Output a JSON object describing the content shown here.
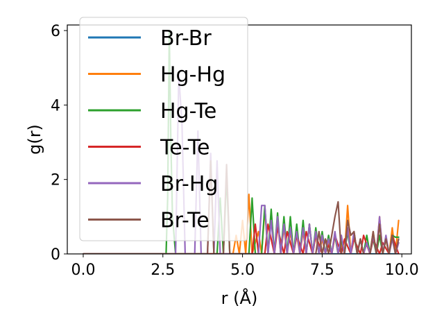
{
  "chart_data": {
    "type": "line",
    "title": "",
    "xlabel": "r (Å)",
    "ylabel": "g(r)",
    "xlim": [
      -0.5,
      10.3
    ],
    "ylim": [
      0,
      6.15
    ],
    "xticks": [
      0.0,
      2.5,
      5.0,
      7.5,
      10.0
    ],
    "xtick_labels": [
      "0.0",
      "2.5",
      "5.0",
      "7.5",
      "10.0"
    ],
    "yticks": [
      0,
      2,
      4,
      6
    ],
    "ytick_labels": [
      "0",
      "2",
      "4",
      "6"
    ],
    "grid": false,
    "legend_position": "upper-left",
    "series": [
      {
        "name": "Br-Br",
        "color": "#1f77b4",
        "x": [
          0.0,
          9.9
        ],
        "y": [
          0.0,
          0.0
        ]
      },
      {
        "name": "Hg-Hg",
        "color": "#ff7f0e",
        "x": [
          0.0,
          4.7,
          4.8,
          4.9,
          5.0,
          5.1,
          5.2,
          5.3,
          5.5,
          5.6,
          5.7,
          5.8,
          5.9,
          6.0,
          6.1,
          6.2,
          6.3,
          6.4,
          6.5,
          6.6,
          6.7,
          6.8,
          6.9,
          7.0,
          7.1,
          7.2,
          7.3,
          7.4,
          7.5,
          7.6,
          7.7,
          7.8,
          7.9,
          8.0,
          8.1,
          8.2,
          8.3,
          8.4,
          8.5,
          8.6,
          8.7,
          8.8,
          8.9,
          9.0,
          9.1,
          9.2,
          9.3,
          9.4,
          9.5,
          9.6,
          9.7,
          9.8,
          9.9
        ],
        "y": [
          0.0,
          0.0,
          0.5,
          0.0,
          0.9,
          0.0,
          1.6,
          0.0,
          0.6,
          0.0,
          1.2,
          0.0,
          1.1,
          0.0,
          0.9,
          0.0,
          0.7,
          0.0,
          0.6,
          0.0,
          0.5,
          0.0,
          0.6,
          0.0,
          0.8,
          0.0,
          0.5,
          0.0,
          0.4,
          0.0,
          0.3,
          0.0,
          0.5,
          0.0,
          0.3,
          0.0,
          1.3,
          0.0,
          0.6,
          0.0,
          0.4,
          0.0,
          0.3,
          0.0,
          0.6,
          0.0,
          1.0,
          0.0,
          0.4,
          0.0,
          0.7,
          0.0,
          0.9
        ]
      },
      {
        "name": "Hg-Te",
        "color": "#2ca02c",
        "x": [
          0.0,
          2.6,
          2.65,
          2.7,
          2.75,
          2.8,
          2.9,
          4.2,
          4.3,
          4.4,
          4.5,
          4.6,
          5.2,
          5.3,
          5.4,
          5.6,
          5.7,
          5.8,
          5.9,
          6.0,
          6.1,
          6.2,
          6.3,
          6.4,
          6.5,
          6.6,
          6.7,
          6.8,
          6.9,
          7.0,
          7.1,
          7.2,
          7.3,
          7.4,
          7.5,
          7.6,
          7.7,
          7.8,
          7.9,
          8.0,
          8.1,
          8.2,
          8.3,
          8.4,
          8.5,
          8.6,
          8.7,
          8.8,
          8.9,
          9.0,
          9.1,
          9.2,
          9.3,
          9.4,
          9.5,
          9.6,
          9.7,
          9.8,
          9.9
        ],
        "y": [
          0.0,
          0.0,
          1.5,
          6.0,
          3.0,
          1.0,
          0.0,
          0.0,
          1.5,
          0.0,
          2.1,
          0.0,
          0.0,
          1.5,
          0.0,
          0.0,
          1.3,
          0.0,
          1.2,
          0.0,
          1.1,
          0.0,
          1.0,
          0.0,
          1.0,
          0.0,
          0.8,
          0.0,
          0.9,
          0.0,
          0.8,
          0.0,
          0.7,
          0.0,
          0.6,
          0.0,
          0.5,
          0.0,
          0.5,
          0.0,
          0.4,
          0.0,
          0.6,
          0.0,
          0.5,
          0.0,
          0.4,
          0.0,
          0.5,
          0.0,
          0.4,
          0.0,
          0.5,
          0.0,
          0.4,
          0.0,
          0.5,
          0.45,
          0.45
        ]
      },
      {
        "name": "Te-Te",
        "color": "#d62728",
        "x": [
          0.0,
          5.3,
          5.4,
          5.5,
          5.7,
          5.8,
          6.0,
          6.1,
          6.3,
          6.4,
          6.6,
          6.7,
          6.9,
          7.0,
          7.2,
          7.3,
          7.5,
          7.6,
          7.8,
          7.9,
          8.1,
          8.2,
          8.4,
          8.5,
          8.7,
          8.8,
          9.0,
          9.1,
          9.3,
          9.4,
          9.6,
          9.7,
          9.9
        ],
        "y": [
          0.0,
          0.0,
          0.8,
          0.0,
          0.0,
          0.8,
          0.0,
          0.7,
          0.0,
          0.6,
          0.0,
          0.5,
          0.0,
          0.6,
          0.0,
          0.5,
          0.0,
          0.4,
          0.0,
          0.5,
          0.0,
          0.4,
          0.0,
          0.4,
          0.0,
          0.5,
          0.0,
          0.4,
          0.0,
          0.3,
          0.0,
          0.5,
          0.0
        ]
      },
      {
        "name": "Br-Hg",
        "color": "#9467bd",
        "x": [
          0.0,
          2.9,
          3.0,
          3.1,
          3.2,
          3.5,
          3.6,
          3.7,
          3.9,
          4.0,
          4.1,
          4.2,
          4.3,
          4.4,
          5.5,
          5.6,
          5.7,
          5.8,
          5.9,
          6.0,
          6.1,
          6.2,
          6.3,
          6.4,
          6.5,
          6.6,
          6.7,
          6.8,
          6.9,
          7.0,
          7.1,
          7.2,
          7.3,
          7.4,
          7.5,
          7.6,
          7.7,
          7.8,
          7.9,
          8.0,
          8.1,
          8.2,
          8.3,
          8.4,
          8.5,
          8.6,
          8.7,
          8.8,
          8.9,
          9.0,
          9.1,
          9.2,
          9.3,
          9.4,
          9.5,
          9.6,
          9.7,
          9.8,
          9.9
        ],
        "y": [
          0.0,
          0.0,
          4.8,
          3.5,
          0.0,
          0.0,
          3.3,
          0.0,
          0.0,
          2.7,
          0.0,
          2.5,
          0.0,
          0.0,
          0.0,
          1.3,
          1.3,
          0.0,
          0.9,
          0.0,
          1.0,
          0.0,
          0.8,
          0.0,
          0.7,
          0.0,
          0.6,
          0.0,
          0.7,
          0.0,
          0.8,
          0.0,
          0.6,
          0.0,
          0.5,
          0.0,
          0.4,
          0.0,
          0.6,
          0.0,
          0.5,
          0.0,
          0.7,
          0.0,
          0.6,
          0.0,
          0.4,
          0.0,
          0.3,
          0.0,
          0.5,
          0.0,
          1.0,
          0.0,
          0.5,
          0.0,
          0.4,
          0.0,
          0.3
        ]
      },
      {
        "name": "Br-Te",
        "color": "#8c564b",
        "x": [
          0.0,
          3.9,
          4.0,
          4.1,
          4.4,
          4.5,
          4.6,
          7.3,
          7.4,
          7.5,
          7.6,
          7.7,
          7.8,
          7.9,
          8.0,
          8.1,
          8.2,
          8.3,
          8.4,
          8.5,
          8.6,
          8.7,
          8.8,
          9.0,
          9.1,
          9.2,
          9.3,
          9.4,
          9.5,
          9.6,
          9.7,
          9.8,
          9.9
        ],
        "y": [
          0.0,
          0.0,
          2.5,
          0.0,
          0.0,
          2.4,
          0.0,
          0.0,
          0.6,
          0.0,
          0.4,
          0.0,
          0.5,
          1.0,
          1.4,
          0.0,
          0.0,
          0.9,
          0.5,
          0.6,
          0.0,
          0.4,
          0.0,
          0.0,
          0.6,
          0.0,
          0.8,
          0.0,
          0.4,
          0.0,
          0.5,
          0.0,
          0.4
        ]
      }
    ]
  }
}
